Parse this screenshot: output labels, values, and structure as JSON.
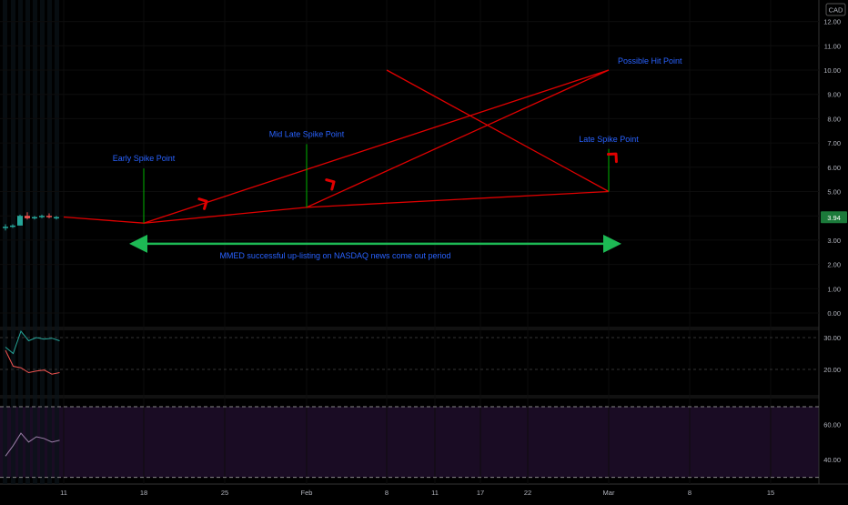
{
  "currency_badge": "CAD",
  "price_badge": "3.94",
  "x_ticks": [
    "11",
    "18",
    "25",
    "Feb",
    "8",
    "11",
    "17",
    "22",
    "Mar",
    "8",
    "15"
  ],
  "annotations": {
    "early": "Early Spike Point",
    "mid": "Mid Late Spike Point",
    "late": "Late Spike Point",
    "hit": "Possible Hit Point",
    "period": "MMED successful up-listing on NASDAQ news come out period"
  },
  "colors": {
    "up": "#26a69a",
    "down": "#ef5350",
    "trend": "#e00000",
    "marker": "#00b300",
    "arrow_green": "#1db954",
    "text_blue": "#2962ff",
    "axis_text": "#b2b5be",
    "rsi_fill": "#1a0c24"
  },
  "chart_data": [
    {
      "type": "line",
      "panel": "price",
      "title": "",
      "y_ticks": [
        "12.00",
        "11.00",
        "10.00",
        "9.00",
        "8.00",
        "7.00",
        "6.00",
        "5.00",
        "4.00",
        "3.00",
        "2.00",
        "1.00",
        "0.00"
      ],
      "ylim": [
        0,
        12
      ],
      "x_ticks": [
        "11",
        "18",
        "25",
        "Feb",
        "8",
        "11",
        "17",
        "22",
        "Mar",
        "8",
        "15"
      ],
      "last_price": 3.94,
      "candles": [
        {
          "open": 3.5,
          "high": 3.65,
          "low": 3.4,
          "close": 3.55
        },
        {
          "open": 3.55,
          "high": 3.65,
          "low": 3.5,
          "close": 3.6
        },
        {
          "open": 3.6,
          "high": 4.05,
          "low": 3.6,
          "close": 4.0
        },
        {
          "open": 4.0,
          "high": 4.15,
          "low": 3.85,
          "close": 3.9
        },
        {
          "open": 3.9,
          "high": 4.0,
          "low": 3.85,
          "close": 3.95
        },
        {
          "open": 3.95,
          "high": 4.05,
          "low": 3.9,
          "close": 4.0
        },
        {
          "open": 4.0,
          "high": 4.1,
          "low": 3.9,
          "close": 3.95
        },
        {
          "open": 3.95,
          "high": 4.0,
          "low": 3.85,
          "close": 3.95
        }
      ],
      "trend_segments": [
        {
          "from": [
            "11",
            3.95
          ],
          "to": [
            "18",
            3.7
          ]
        },
        {
          "from": [
            "18",
            3.7
          ],
          "to": [
            "Feb",
            4.35
          ]
        },
        {
          "from": [
            "Feb",
            4.35
          ],
          "to": [
            "Mar",
            5.0
          ]
        },
        {
          "from": [
            "18",
            3.7
          ],
          "to": [
            "Mar",
            10.0
          ]
        },
        {
          "from": [
            "Feb",
            4.35
          ],
          "to": [
            "Mar",
            10.0
          ]
        },
        {
          "from": [
            "Mar",
            5.0
          ],
          "to": [
            "8",
            10.0
          ]
        }
      ],
      "arrows": [
        {
          "date": "25",
          "value": 4.6
        },
        {
          "date": "Feb",
          "value": 5.4
        },
        {
          "date": "Mar",
          "value": 6.55
        }
      ],
      "markers": [
        {
          "label_key": "early",
          "date": "18",
          "from": 3.7,
          "to": 5.95
        },
        {
          "label_key": "mid",
          "date": "Feb",
          "from": 4.35,
          "to": 6.95
        },
        {
          "label_key": "late",
          "date": "Mar",
          "from": 5.0,
          "to": 6.75
        }
      ],
      "period_range": {
        "from": "18",
        "to": "Mar",
        "value": 2.85
      }
    },
    {
      "type": "line",
      "panel": "indicator",
      "y_ticks": [
        "30.00",
        "20.00"
      ],
      "ylim": [
        16,
        34
      ],
      "series": [
        {
          "color": "#26a69a",
          "values": [
            27,
            25,
            32,
            29,
            30,
            29.5,
            29.8,
            29
          ]
        },
        {
          "color": "#ef5350",
          "values": [
            26,
            21,
            20.5,
            19,
            19.5,
            19.8,
            18.5,
            19
          ]
        }
      ]
    },
    {
      "type": "line",
      "panel": "rsi",
      "y_ticks": [
        "60.00",
        "40.00"
      ],
      "ylim": [
        28,
        72
      ],
      "bands": [
        70,
        30
      ],
      "series": [
        {
          "color": "#9b7fa8",
          "values": [
            42,
            48,
            55,
            50,
            53,
            52,
            50,
            51
          ]
        }
      ]
    }
  ]
}
